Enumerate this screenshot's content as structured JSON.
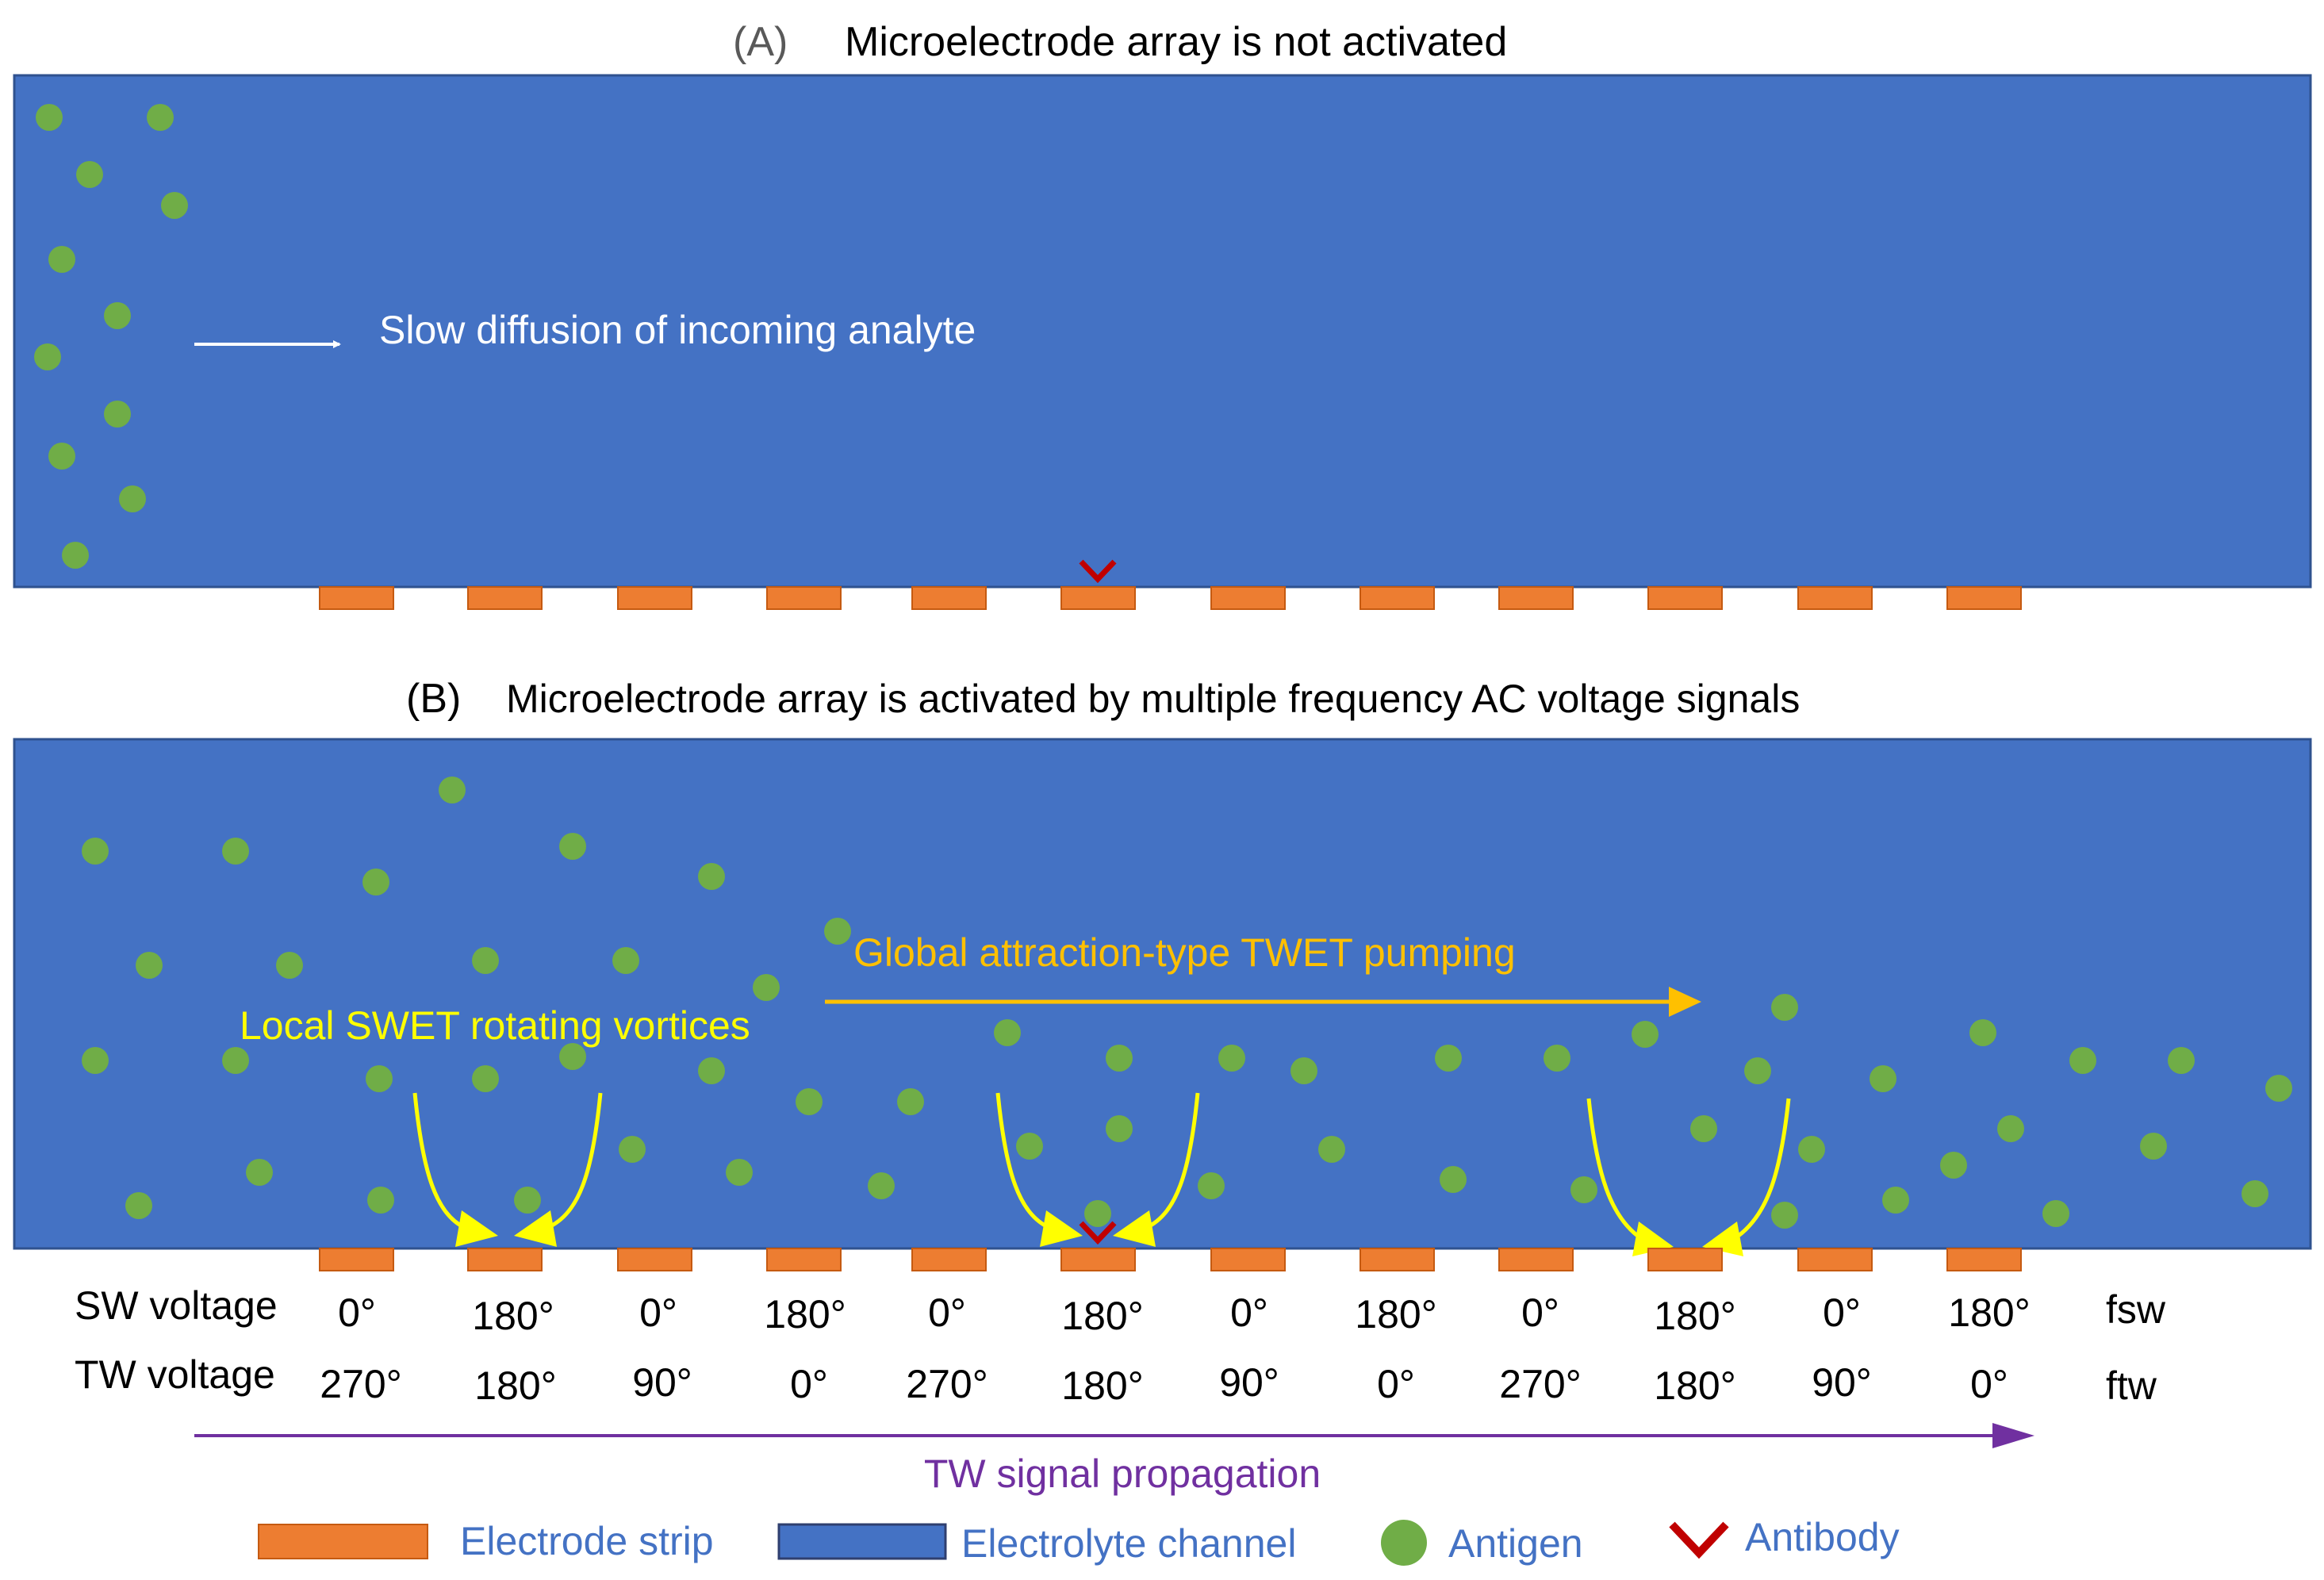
{
  "panel_a": {
    "label": "(A)",
    "title": "Microelectrode array is not activated",
    "diffusion_label": "Slow diffusion of incoming analyte"
  },
  "panel_b": {
    "label": "(B)",
    "title": "Microelectrode array is activated by multiple frequency AC voltage signals",
    "twet_label": "Global attraction-type TWET pumping",
    "swet_label": "Local SWET rotating vortices"
  },
  "voltages": {
    "sw_label": "SW voltage",
    "tw_label": "TW voltage",
    "sw_values": [
      "0°",
      "180°",
      "0°",
      "180°",
      "0°",
      "180°",
      "0°",
      "180°",
      "0°",
      "180°",
      "0°",
      "180°"
    ],
    "tw_values": [
      "270°",
      "180°",
      "90°",
      "0°",
      "270°",
      "180°",
      "90°",
      "0°",
      "270°",
      "180°",
      "90°",
      "0°"
    ],
    "fsw": "fsw",
    "ftw": "ftw",
    "propagation_label": "TW signal propagation"
  },
  "legend": {
    "electrode": "Electrode strip",
    "channel": "Electrolyte channel",
    "antigen": "Antigen",
    "antibody": "Antibody"
  },
  "colors": {
    "channel": "#4472c4",
    "electrode": "#ed7d31",
    "antigen": "#70ad47",
    "antibody": "#c00000",
    "vortex": "#ffff00",
    "twet": "#ffc000",
    "propagation": "#7030a0",
    "legend_text": "#4472c4"
  }
}
